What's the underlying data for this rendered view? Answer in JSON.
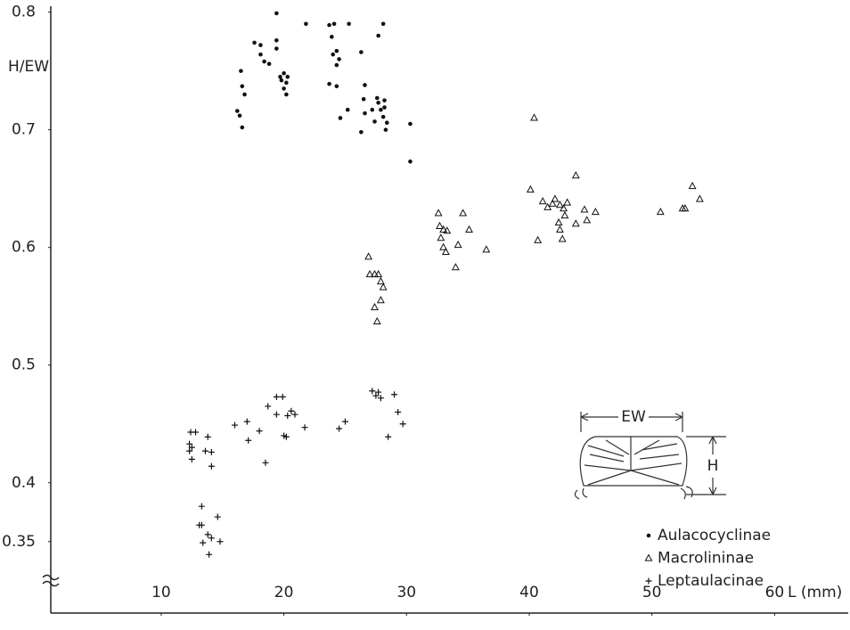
{
  "chart_data": {
    "type": "scatter",
    "xlabel": "L (mm)",
    "ylabel": "H/EW",
    "xlim": [
      1,
      66
    ],
    "ylim": [
      0.29,
      0.805
    ],
    "xticks": [
      10,
      20,
      30,
      40,
      50,
      60
    ],
    "yticks": [
      0.8,
      0.7,
      0.6,
      0.5,
      0.4,
      0.35
    ],
    "legend": "lower right",
    "annotations": [
      "EW",
      "H"
    ],
    "series": [
      {
        "name": "Aulacocyclinae",
        "color": "#111111",
        "marker": "circle",
        "x": [
          16.2,
          16.4,
          16.6,
          16.5,
          16.6,
          16.8,
          17.6,
          18.1,
          18.1,
          18.4,
          18.8,
          19.4,
          19.4,
          19.4,
          19.7,
          19.8,
          20.0,
          20.2,
          20.0,
          20.3,
          20.2,
          21.8,
          23.7,
          24.1,
          25.3,
          23.9,
          24.3,
          24.0,
          24.5,
          24.3,
          23.7,
          24.3,
          25.2,
          24.6,
          26.3,
          26.6,
          26.5,
          26.6,
          26.3,
          27.6,
          27.7,
          27.2,
          27.4,
          27.9,
          27.7,
          28.1,
          28.2,
          28.2,
          28.1,
          28.4,
          28.3,
          30.3,
          30.3
        ],
        "y": [
          0.716,
          0.712,
          0.702,
          0.75,
          0.737,
          0.73,
          0.774,
          0.772,
          0.764,
          0.758,
          0.756,
          0.776,
          0.799,
          0.769,
          0.745,
          0.742,
          0.748,
          0.74,
          0.735,
          0.745,
          0.73,
          0.79,
          0.789,
          0.79,
          0.79,
          0.779,
          0.767,
          0.764,
          0.76,
          0.755,
          0.739,
          0.737,
          0.717,
          0.71,
          0.766,
          0.738,
          0.726,
          0.714,
          0.698,
          0.727,
          0.723,
          0.717,
          0.707,
          0.717,
          0.78,
          0.79,
          0.725,
          0.719,
          0.711,
          0.706,
          0.7,
          0.705,
          0.673
        ]
      },
      {
        "name": "Macrolininae",
        "color": "#111111",
        "marker": "triangle",
        "x": [
          26.9,
          27.0,
          27.4,
          27.7,
          27.9,
          28.1,
          27.9,
          27.4,
          27.6,
          32.6,
          32.7,
          33.0,
          33.3,
          32.8,
          33.0,
          33.2,
          34.2,
          34.6,
          35.1,
          34.0,
          36.5,
          40.4,
          40.1,
          40.7,
          41.1,
          41.5,
          41.9,
          42.1,
          42.5,
          42.8,
          42.9,
          42.4,
          42.5,
          42.7,
          43.1,
          43.8,
          43.8,
          44.5,
          44.7,
          45.4,
          50.7,
          52.5,
          52.7,
          53.3,
          53.9
        ],
        "y": [
          0.592,
          0.577,
          0.577,
          0.577,
          0.571,
          0.566,
          0.555,
          0.549,
          0.537,
          0.629,
          0.618,
          0.615,
          0.614,
          0.608,
          0.6,
          0.596,
          0.602,
          0.629,
          0.615,
          0.583,
          0.598,
          0.71,
          0.649,
          0.606,
          0.639,
          0.634,
          0.637,
          0.641,
          0.636,
          0.633,
          0.627,
          0.621,
          0.615,
          0.607,
          0.638,
          0.661,
          0.62,
          0.632,
          0.623,
          0.63,
          0.63,
          0.633,
          0.633,
          0.652,
          0.641
        ]
      },
      {
        "name": "Leptaulacinae",
        "color": "#111111",
        "marker": "plus",
        "x": [
          13.3,
          13.1,
          13.3,
          13.4,
          13.8,
          14.1,
          14.6,
          14.8,
          13.9,
          12.4,
          12.8,
          12.3,
          12.5,
          12.3,
          12.5,
          13.6,
          13.8,
          14.1,
          14.1,
          16.0,
          17.0,
          17.1,
          18.0,
          18.5,
          18.7,
          19.4,
          19.4,
          19.9,
          20.0,
          20.3,
          20.6,
          20.2,
          20.9,
          21.7,
          24.5,
          25.0,
          27.2,
          27.5,
          27.7,
          27.9,
          29.0,
          29.3,
          29.7,
          28.5
        ],
        "y": [
          0.38,
          0.364,
          0.364,
          0.349,
          0.356,
          0.353,
          0.371,
          0.35,
          0.339,
          0.443,
          0.443,
          0.433,
          0.43,
          0.427,
          0.42,
          0.427,
          0.439,
          0.426,
          0.414,
          0.449,
          0.452,
          0.436,
          0.444,
          0.417,
          0.465,
          0.473,
          0.458,
          0.473,
          0.44,
          0.457,
          0.461,
          0.439,
          0.458,
          0.447,
          0.446,
          0.452,
          0.478,
          0.474,
          0.477,
          0.472,
          0.475,
          0.46,
          0.45,
          0.439
        ]
      }
    ]
  }
}
